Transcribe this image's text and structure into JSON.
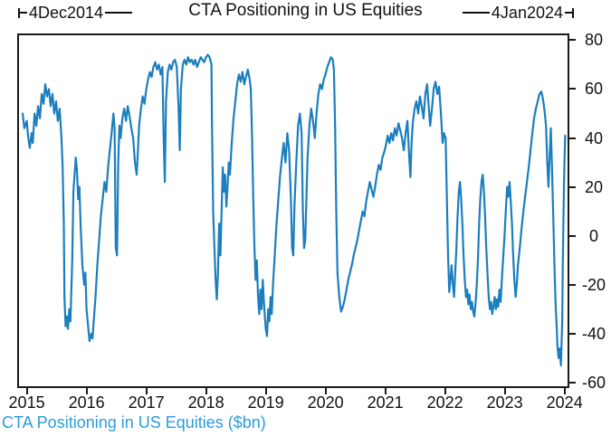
{
  "title": "CTA Positioning in US Equities",
  "annotations": {
    "start": "4Dec2014",
    "end": "4Jan2024"
  },
  "caption": "CTA Positioning in US Equities ($bn)",
  "colors": {
    "line": "#1b7ebe",
    "caption": "#2b9cdb",
    "axis": "#1a1a1a",
    "text": "#111111",
    "background": "#ffffff"
  },
  "chart_data": {
    "type": "line",
    "title": "CTA Positioning in US Equities",
    "series_label": "CTA Positioning in US Equities ($bn)",
    "xlabel": "",
    "ylabel": "",
    "y_axis_side": "right",
    "grid": false,
    "legend": "none",
    "x_ticks": [
      2015,
      2016,
      2017,
      2018,
      2019,
      2020,
      2021,
      2022,
      2023,
      2024
    ],
    "y_ticks": [
      80,
      60,
      40,
      20,
      0,
      -20,
      -40,
      -60
    ],
    "x_range": [
      2014.87,
      2024.05
    ],
    "y_range": [
      -61.5,
      82
    ],
    "date_start": "4Dec2014",
    "date_end": "4Jan2024",
    "points": [
      [
        2014.93,
        50
      ],
      [
        2014.96,
        44
      ],
      [
        2015.0,
        47
      ],
      [
        2015.02,
        41
      ],
      [
        2015.05,
        36
      ],
      [
        2015.08,
        42
      ],
      [
        2015.1,
        38
      ],
      [
        2015.13,
        50
      ],
      [
        2015.16,
        45
      ],
      [
        2015.19,
        53
      ],
      [
        2015.22,
        48
      ],
      [
        2015.25,
        58
      ],
      [
        2015.28,
        54
      ],
      [
        2015.31,
        62
      ],
      [
        2015.34,
        57
      ],
      [
        2015.37,
        60
      ],
      [
        2015.4,
        53
      ],
      [
        2015.43,
        58
      ],
      [
        2015.46,
        50
      ],
      [
        2015.49,
        55
      ],
      [
        2015.52,
        47
      ],
      [
        2015.55,
        52
      ],
      [
        2015.58,
        40
      ],
      [
        2015.6,
        28
      ],
      [
        2015.62,
        5
      ],
      [
        2015.63,
        -25
      ],
      [
        2015.65,
        -37
      ],
      [
        2015.67,
        -33
      ],
      [
        2015.69,
        -38
      ],
      [
        2015.71,
        -30
      ],
      [
        2015.73,
        -35
      ],
      [
        2015.76,
        -10
      ],
      [
        2015.78,
        18
      ],
      [
        2015.8,
        25
      ],
      [
        2015.82,
        32
      ],
      [
        2015.84,
        27
      ],
      [
        2015.86,
        15
      ],
      [
        2015.88,
        20
      ],
      [
        2015.9,
        5
      ],
      [
        2015.93,
        -12
      ],
      [
        2015.96,
        -20
      ],
      [
        2015.98,
        -15
      ],
      [
        2016.0,
        -30
      ],
      [
        2016.03,
        -38
      ],
      [
        2016.05,
        -43
      ],
      [
        2016.08,
        -40
      ],
      [
        2016.1,
        -42
      ],
      [
        2016.12,
        -35
      ],
      [
        2016.15,
        -25
      ],
      [
        2016.18,
        -12
      ],
      [
        2016.21,
        -2
      ],
      [
        2016.24,
        8
      ],
      [
        2016.27,
        15
      ],
      [
        2016.3,
        22
      ],
      [
        2016.33,
        18
      ],
      [
        2016.36,
        28
      ],
      [
        2016.39,
        35
      ],
      [
        2016.42,
        42
      ],
      [
        2016.45,
        50
      ],
      [
        2016.47,
        44
      ],
      [
        2016.49,
        -5
      ],
      [
        2016.51,
        -8
      ],
      [
        2016.53,
        30
      ],
      [
        2016.55,
        45
      ],
      [
        2016.57,
        40
      ],
      [
        2016.6,
        48
      ],
      [
        2016.63,
        52
      ],
      [
        2016.66,
        47
      ],
      [
        2016.69,
        53
      ],
      [
        2016.72,
        49
      ],
      [
        2016.75,
        44
      ],
      [
        2016.78,
        40
      ],
      [
        2016.81,
        30
      ],
      [
        2016.84,
        25
      ],
      [
        2016.86,
        35
      ],
      [
        2016.88,
        45
      ],
      [
        2016.91,
        52
      ],
      [
        2016.94,
        57
      ],
      [
        2016.97,
        54
      ],
      [
        2017.0,
        60
      ],
      [
        2017.03,
        64
      ],
      [
        2017.06,
        67
      ],
      [
        2017.09,
        65
      ],
      [
        2017.12,
        69
      ],
      [
        2017.15,
        71
      ],
      [
        2017.18,
        68
      ],
      [
        2017.21,
        70
      ],
      [
        2017.24,
        66
      ],
      [
        2017.27,
        69
      ],
      [
        2017.29,
        40
      ],
      [
        2017.31,
        22
      ],
      [
        2017.33,
        55
      ],
      [
        2017.36,
        67
      ],
      [
        2017.39,
        70
      ],
      [
        2017.42,
        68
      ],
      [
        2017.45,
        71
      ],
      [
        2017.48,
        72
      ],
      [
        2017.51,
        69
      ],
      [
        2017.54,
        52
      ],
      [
        2017.56,
        35
      ],
      [
        2017.58,
        60
      ],
      [
        2017.61,
        70
      ],
      [
        2017.64,
        72
      ],
      [
        2017.67,
        70
      ],
      [
        2017.7,
        73
      ],
      [
        2017.73,
        71
      ],
      [
        2017.76,
        72
      ],
      [
        2017.79,
        70
      ],
      [
        2017.82,
        72
      ],
      [
        2017.85,
        69
      ],
      [
        2017.88,
        71
      ],
      [
        2017.91,
        73
      ],
      [
        2017.94,
        72
      ],
      [
        2017.97,
        71
      ],
      [
        2018.0,
        73
      ],
      [
        2018.03,
        74
      ],
      [
        2018.06,
        73
      ],
      [
        2018.09,
        70
      ],
      [
        2018.1,
        45
      ],
      [
        2018.12,
        10
      ],
      [
        2018.14,
        -5
      ],
      [
        2018.16,
        -18
      ],
      [
        2018.18,
        -26
      ],
      [
        2018.2,
        -15
      ],
      [
        2018.22,
        5
      ],
      [
        2018.24,
        -8
      ],
      [
        2018.26,
        10
      ],
      [
        2018.28,
        28
      ],
      [
        2018.3,
        18
      ],
      [
        2018.32,
        25
      ],
      [
        2018.34,
        12
      ],
      [
        2018.36,
        20
      ],
      [
        2018.38,
        30
      ],
      [
        2018.4,
        25
      ],
      [
        2018.43,
        38
      ],
      [
        2018.46,
        48
      ],
      [
        2018.49,
        55
      ],
      [
        2018.52,
        62
      ],
      [
        2018.55,
        66
      ],
      [
        2018.58,
        63
      ],
      [
        2018.61,
        67
      ],
      [
        2018.64,
        62
      ],
      [
        2018.67,
        65
      ],
      [
        2018.7,
        68
      ],
      [
        2018.73,
        64
      ],
      [
        2018.75,
        60
      ],
      [
        2018.77,
        40
      ],
      [
        2018.79,
        15
      ],
      [
        2018.81,
        -5
      ],
      [
        2018.83,
        -18
      ],
      [
        2018.85,
        -10
      ],
      [
        2018.87,
        -25
      ],
      [
        2018.89,
        -32
      ],
      [
        2018.91,
        -22
      ],
      [
        2018.93,
        -30
      ],
      [
        2018.95,
        -18
      ],
      [
        2018.97,
        -28
      ],
      [
        2019.0,
        -38
      ],
      [
        2019.02,
        -41
      ],
      [
        2019.04,
        -30
      ],
      [
        2019.06,
        -35
      ],
      [
        2019.08,
        -25
      ],
      [
        2019.1,
        -32
      ],
      [
        2019.12,
        -20
      ],
      [
        2019.15,
        -8
      ],
      [
        2019.18,
        5
      ],
      [
        2019.21,
        15
      ],
      [
        2019.24,
        25
      ],
      [
        2019.27,
        32
      ],
      [
        2019.3,
        38
      ],
      [
        2019.33,
        30
      ],
      [
        2019.36,
        42
      ],
      [
        2019.39,
        35
      ],
      [
        2019.42,
        15
      ],
      [
        2019.44,
        -5
      ],
      [
        2019.46,
        -8
      ],
      [
        2019.48,
        12
      ],
      [
        2019.51,
        30
      ],
      [
        2019.54,
        45
      ],
      [
        2019.57,
        50
      ],
      [
        2019.6,
        42
      ],
      [
        2019.62,
        10
      ],
      [
        2019.64,
        -5
      ],
      [
        2019.66,
        -2
      ],
      [
        2019.68,
        15
      ],
      [
        2019.7,
        32
      ],
      [
        2019.73,
        45
      ],
      [
        2019.76,
        52
      ],
      [
        2019.79,
        47
      ],
      [
        2019.82,
        40
      ],
      [
        2019.85,
        50
      ],
      [
        2019.88,
        58
      ],
      [
        2019.91,
        62
      ],
      [
        2019.94,
        60
      ],
      [
        2019.97,
        64
      ],
      [
        2020.0,
        66
      ],
      [
        2020.03,
        69
      ],
      [
        2020.06,
        71
      ],
      [
        2020.09,
        73
      ],
      [
        2020.12,
        72
      ],
      [
        2020.14,
        68
      ],
      [
        2020.16,
        45
      ],
      [
        2020.18,
        10
      ],
      [
        2020.2,
        -15
      ],
      [
        2020.23,
        -25
      ],
      [
        2020.26,
        -31
      ],
      [
        2020.29,
        -29
      ],
      [
        2020.32,
        -26
      ],
      [
        2020.35,
        -22
      ],
      [
        2020.38,
        -18
      ],
      [
        2020.41,
        -15
      ],
      [
        2020.44,
        -12
      ],
      [
        2020.47,
        -8
      ],
      [
        2020.5,
        -5
      ],
      [
        2020.53,
        -2
      ],
      [
        2020.56,
        2
      ],
      [
        2020.59,
        6
      ],
      [
        2020.62,
        10
      ],
      [
        2020.65,
        8
      ],
      [
        2020.68,
        14
      ],
      [
        2020.71,
        18
      ],
      [
        2020.74,
        22
      ],
      [
        2020.77,
        19
      ],
      [
        2020.8,
        16
      ],
      [
        2020.83,
        20
      ],
      [
        2020.86,
        25
      ],
      [
        2020.89,
        29
      ],
      [
        2020.92,
        27
      ],
      [
        2020.95,
        32
      ],
      [
        2020.98,
        34
      ],
      [
        2021.01,
        37
      ],
      [
        2021.04,
        41
      ],
      [
        2021.07,
        38
      ],
      [
        2021.1,
        42
      ],
      [
        2021.13,
        39
      ],
      [
        2021.16,
        44
      ],
      [
        2021.19,
        41
      ],
      [
        2021.22,
        46
      ],
      [
        2021.25,
        43
      ],
      [
        2021.28,
        40
      ],
      [
        2021.31,
        35
      ],
      [
        2021.34,
        42
      ],
      [
        2021.37,
        47
      ],
      [
        2021.4,
        32
      ],
      [
        2021.42,
        24
      ],
      [
        2021.44,
        38
      ],
      [
        2021.46,
        46
      ],
      [
        2021.49,
        52
      ],
      [
        2021.52,
        55
      ],
      [
        2021.55,
        50
      ],
      [
        2021.58,
        57
      ],
      [
        2021.61,
        53
      ],
      [
        2021.64,
        48
      ],
      [
        2021.67,
        58
      ],
      [
        2021.7,
        62
      ],
      [
        2021.72,
        55
      ],
      [
        2021.75,
        45
      ],
      [
        2021.78,
        52
      ],
      [
        2021.81,
        60
      ],
      [
        2021.84,
        63
      ],
      [
        2021.87,
        58
      ],
      [
        2021.9,
        61
      ],
      [
        2021.93,
        50
      ],
      [
        2021.96,
        38
      ],
      [
        2021.98,
        42
      ],
      [
        2022.01,
        40
      ],
      [
        2022.03,
        15
      ],
      [
        2022.05,
        -8
      ],
      [
        2022.07,
        -23
      ],
      [
        2022.09,
        -18
      ],
      [
        2022.11,
        -12
      ],
      [
        2022.13,
        -20
      ],
      [
        2022.15,
        -25
      ],
      [
        2022.17,
        -15
      ],
      [
        2022.19,
        -5
      ],
      [
        2022.21,
        8
      ],
      [
        2022.23,
        18
      ],
      [
        2022.25,
        22
      ],
      [
        2022.27,
        15
      ],
      [
        2022.29,
        5
      ],
      [
        2022.31,
        -8
      ],
      [
        2022.33,
        -18
      ],
      [
        2022.35,
        -25
      ],
      [
        2022.37,
        -22
      ],
      [
        2022.39,
        -28
      ],
      [
        2022.41,
        -24
      ],
      [
        2022.43,
        -30
      ],
      [
        2022.45,
        -27
      ],
      [
        2022.47,
        -31
      ],
      [
        2022.49,
        -33
      ],
      [
        2022.51,
        -28
      ],
      [
        2022.53,
        -20
      ],
      [
        2022.55,
        -10
      ],
      [
        2022.57,
        5
      ],
      [
        2022.59,
        15
      ],
      [
        2022.61,
        22
      ],
      [
        2022.63,
        25
      ],
      [
        2022.65,
        18
      ],
      [
        2022.67,
        8
      ],
      [
        2022.69,
        -5
      ],
      [
        2022.71,
        -15
      ],
      [
        2022.73,
        -25
      ],
      [
        2022.75,
        -30
      ],
      [
        2022.77,
        -27
      ],
      [
        2022.79,
        -32
      ],
      [
        2022.81,
        -29
      ],
      [
        2022.83,
        -25
      ],
      [
        2022.85,
        -30
      ],
      [
        2022.87,
        -26
      ],
      [
        2022.89,
        -29
      ],
      [
        2022.91,
        -22
      ],
      [
        2022.93,
        -27
      ],
      [
        2022.95,
        -18
      ],
      [
        2022.97,
        -10
      ],
      [
        2023.0,
        2
      ],
      [
        2023.02,
        12
      ],
      [
        2023.04,
        20
      ],
      [
        2023.06,
        16
      ],
      [
        2023.08,
        22
      ],
      [
        2023.1,
        14
      ],
      [
        2023.12,
        5
      ],
      [
        2023.14,
        -8
      ],
      [
        2023.16,
        -18
      ],
      [
        2023.18,
        -25
      ],
      [
        2023.2,
        -20
      ],
      [
        2023.22,
        -12
      ],
      [
        2023.25,
        -5
      ],
      [
        2023.28,
        3
      ],
      [
        2023.31,
        10
      ],
      [
        2023.34,
        16
      ],
      [
        2023.37,
        22
      ],
      [
        2023.4,
        28
      ],
      [
        2023.43,
        35
      ],
      [
        2023.46,
        42
      ],
      [
        2023.49,
        48
      ],
      [
        2023.52,
        52
      ],
      [
        2023.55,
        55
      ],
      [
        2023.58,
        58
      ],
      [
        2023.61,
        59
      ],
      [
        2023.63,
        57
      ],
      [
        2023.65,
        54
      ],
      [
        2023.67,
        50
      ],
      [
        2023.69,
        45
      ],
      [
        2023.71,
        30
      ],
      [
        2023.73,
        20
      ],
      [
        2023.75,
        32
      ],
      [
        2023.77,
        44
      ],
      [
        2023.79,
        28
      ],
      [
        2023.81,
        8
      ],
      [
        2023.83,
        -12
      ],
      [
        2023.85,
        -28
      ],
      [
        2023.87,
        -38
      ],
      [
        2023.88,
        -45
      ],
      [
        2023.9,
        -50
      ],
      [
        2023.92,
        -46
      ],
      [
        2023.94,
        -53
      ],
      [
        2023.96,
        -35
      ],
      [
        2023.97,
        -13
      ],
      [
        2023.98,
        5
      ],
      [
        2023.99,
        20
      ],
      [
        2024.0,
        32
      ],
      [
        2024.01,
        41
      ]
    ]
  }
}
